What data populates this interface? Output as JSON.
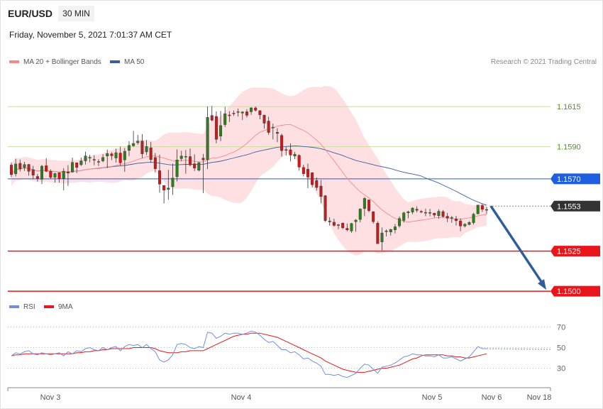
{
  "header": {
    "symbol": "EUR/USD",
    "interval": "30 MIN",
    "datetime": "Friday, November 5, 2021 7:01:37 AM CET",
    "credit": "Research © 2021 Trading Central"
  },
  "colors": {
    "support_red": "#e8161b",
    "resistance_blue": "#1f5ede",
    "resistance_green": "#4a9a00",
    "last_price_tag": "#333333",
    "bollinger_fill": "#ffe0e2",
    "ma20": "#f38a8a",
    "ma50": "#3a5fa0",
    "candle_up": "#2e7d1f",
    "candle_down": "#d01818",
    "arrow": "#2f5d9b",
    "rsi": "#6f8fdc",
    "rsi_ma": "#e8161b"
  },
  "chart_data": [
    {
      "type": "candlestick",
      "legend": [
        {
          "name": "MA 20 + Bollinger Bands",
          "color": "#f38a8a"
        },
        {
          "name": "MA 50",
          "color": "#3a5fa0"
        }
      ],
      "x_ticks": [
        "Nov 3",
        "Nov 4",
        "Nov 5",
        "Nov 6",
        "Nov 18"
      ],
      "ylim": [
        1.14965,
        1.16372
      ],
      "levels": [
        {
          "value": 1.1615,
          "label": "1.1615",
          "kind": "resistance-green"
        },
        {
          "value": 1.159,
          "label": "1.1590",
          "kind": "resistance-green"
        },
        {
          "value": 1.157,
          "label": "1.1570",
          "kind": "resistance-blue"
        },
        {
          "value": 1.1553,
          "label": "1.1553",
          "kind": "last-price"
        },
        {
          "value": 1.1525,
          "label": "1.1525",
          "kind": "support-red"
        },
        {
          "value": 1.15,
          "label": "1.1500",
          "kind": "support-red"
        }
      ],
      "forecast_arrow": {
        "from": 1.1553,
        "to": 1.15
      },
      "ohlc": [
        [
          1.15786,
          1.15802,
          1.1571,
          1.15726
        ],
        [
          1.15731,
          1.15825,
          1.15715,
          1.15793
        ],
        [
          1.15797,
          1.1582,
          1.15746,
          1.15763
        ],
        [
          1.1577,
          1.15806,
          1.15749,
          1.15789
        ],
        [
          1.1579,
          1.15793,
          1.1572,
          1.15747
        ],
        [
          1.15757,
          1.15781,
          1.15698,
          1.15723
        ],
        [
          1.15715,
          1.15731,
          1.15683,
          1.15702
        ],
        [
          1.15697,
          1.15787,
          1.15668,
          1.15779
        ],
        [
          1.15782,
          1.15829,
          1.15742,
          1.15747
        ],
        [
          1.15747,
          1.15759,
          1.157,
          1.15709
        ],
        [
          1.1571,
          1.15739,
          1.15676,
          1.15733
        ],
        [
          1.15738,
          1.15741,
          1.15677,
          1.15701
        ],
        [
          1.157,
          1.15767,
          1.15629,
          1.15748
        ],
        [
          1.15744,
          1.15785,
          1.15656,
          1.15736
        ],
        [
          1.15742,
          1.15832,
          1.15739,
          1.15802
        ],
        [
          1.158,
          1.15802,
          1.15736,
          1.15771
        ],
        [
          1.15788,
          1.15833,
          1.1578,
          1.15812
        ],
        [
          1.15812,
          1.1587,
          1.15789,
          1.15843
        ],
        [
          1.15834,
          1.1585,
          1.15803,
          1.15834
        ],
        [
          1.15821,
          1.15847,
          1.15785,
          1.15817
        ],
        [
          1.15808,
          1.15822,
          1.1578,
          1.15806
        ],
        [
          1.15812,
          1.15853,
          1.15803,
          1.15833
        ],
        [
          1.15842,
          1.15883,
          1.15767,
          1.15858
        ],
        [
          1.15856,
          1.15866,
          1.15817,
          1.15844
        ],
        [
          1.1583,
          1.15888,
          1.15801,
          1.15863
        ],
        [
          1.15861,
          1.15901,
          1.15783,
          1.158
        ],
        [
          1.15818,
          1.15892,
          1.15744,
          1.15872
        ],
        [
          1.15877,
          1.15935,
          1.15842,
          1.15908
        ],
        [
          1.15906,
          1.15999,
          1.15899,
          1.1592
        ],
        [
          1.15925,
          1.15974,
          1.15913,
          1.15935
        ],
        [
          1.15936,
          1.15979,
          1.15829,
          1.15856
        ],
        [
          1.15868,
          1.15941,
          1.15849,
          1.15902
        ],
        [
          1.15894,
          1.1593,
          1.15801,
          1.1582
        ],
        [
          1.15833,
          1.15861,
          1.1574,
          1.15763
        ],
        [
          1.15751,
          1.15851,
          1.15614,
          1.15667
        ],
        [
          1.15659,
          1.15659,
          1.15547,
          1.1563
        ],
        [
          1.15634,
          1.15756,
          1.1557,
          1.15643
        ],
        [
          1.15651,
          1.15795,
          1.156,
          1.15705
        ],
        [
          1.15713,
          1.15883,
          1.15684,
          1.15818
        ],
        [
          1.15826,
          1.15875,
          1.15809,
          1.15842
        ],
        [
          1.15837,
          1.1588,
          1.15732,
          1.1584
        ],
        [
          1.15839,
          1.15889,
          1.15777,
          1.15787
        ],
        [
          1.15794,
          1.15853,
          1.15749,
          1.15767
        ],
        [
          1.15754,
          1.15806,
          1.15746,
          1.15801
        ],
        [
          1.15829,
          1.15855,
          1.15611,
          1.15818
        ],
        [
          1.15819,
          1.16151,
          1.15761,
          1.16083
        ],
        [
          1.16095,
          1.16154,
          1.16059,
          1.16065
        ],
        [
          1.16089,
          1.16121,
          1.15921,
          1.15946
        ],
        [
          1.15966,
          1.16123,
          1.15935,
          1.16032
        ],
        [
          1.16038,
          1.16148,
          1.16023,
          1.16106
        ],
        [
          1.16098,
          1.16122,
          1.16054,
          1.16093
        ],
        [
          1.16109,
          1.16126,
          1.16092,
          1.1611
        ],
        [
          1.16117,
          1.16138,
          1.16088,
          1.16119
        ],
        [
          1.1611,
          1.16121,
          1.16067,
          1.16117
        ],
        [
          1.16118,
          1.16134,
          1.16083,
          1.16096
        ],
        [
          1.16118,
          1.16147,
          1.16099,
          1.16142
        ],
        [
          1.16142,
          1.16151,
          1.16119,
          1.16127
        ],
        [
          1.16125,
          1.16127,
          1.16071,
          1.16099
        ],
        [
          1.16097,
          1.161,
          1.16013,
          1.16047
        ],
        [
          1.1606,
          1.16087,
          1.15975,
          1.15989
        ],
        [
          1.16022,
          1.16044,
          1.15946,
          1.16022
        ],
        [
          1.1599,
          1.16016,
          1.15928,
          1.15983
        ],
        [
          1.15971,
          1.15982,
          1.15839,
          1.15876
        ],
        [
          1.15882,
          1.15899,
          1.15845,
          1.15879
        ],
        [
          1.15881,
          1.15921,
          1.15809,
          1.15848
        ],
        [
          1.15842,
          1.15868,
          1.15823,
          1.15853
        ],
        [
          1.15846,
          1.15853,
          1.15751,
          1.15773
        ],
        [
          1.15771,
          1.15788,
          1.15715,
          1.15732
        ],
        [
          1.1576,
          1.15795,
          1.15642,
          1.15711
        ],
        [
          1.15738,
          1.15741,
          1.15646,
          1.15663
        ],
        [
          1.1569,
          1.15709,
          1.15627,
          1.15646
        ],
        [
          1.15655,
          1.15693,
          1.15548,
          1.1559
        ],
        [
          1.15595,
          1.15599,
          1.15432,
          1.1544
        ],
        [
          1.15437,
          1.1546,
          1.15408,
          1.15432
        ],
        [
          1.1543,
          1.15452,
          1.15403,
          1.1541
        ],
        [
          1.15414,
          1.15419,
          1.15386,
          1.15412
        ],
        [
          1.15424,
          1.15428,
          1.15386,
          1.15395
        ],
        [
          1.15392,
          1.15422,
          1.15373,
          1.15382
        ],
        [
          1.15375,
          1.15425,
          1.15364,
          1.15422
        ],
        [
          1.15433,
          1.15449,
          1.15371,
          1.15443
        ],
        [
          1.15447,
          1.15517,
          1.15429,
          1.15512
        ],
        [
          1.15515,
          1.15587,
          1.15467,
          1.15578
        ],
        [
          1.15569,
          1.1557,
          1.15491,
          1.15502
        ],
        [
          1.15495,
          1.15499,
          1.15421,
          1.15433
        ],
        [
          1.15424,
          1.15436,
          1.15298,
          1.15296
        ],
        [
          1.15307,
          1.15397,
          1.15255,
          1.15363
        ],
        [
          1.15371,
          1.15385,
          1.15341,
          1.15376
        ],
        [
          1.15369,
          1.15388,
          1.15347,
          1.15385
        ],
        [
          1.15382,
          1.15419,
          1.1536,
          1.15401
        ],
        [
          1.15407,
          1.15466,
          1.15396,
          1.15453
        ],
        [
          1.15441,
          1.15495,
          1.15428,
          1.15488
        ],
        [
          1.15488,
          1.15502,
          1.15454,
          1.15495
        ],
        [
          1.15493,
          1.15523,
          1.1548,
          1.15518
        ],
        [
          1.15511,
          1.15529,
          1.15491,
          1.15504
        ],
        [
          1.15497,
          1.15506,
          1.15486,
          1.15495
        ],
        [
          1.15491,
          1.15514,
          1.15467,
          1.15489
        ],
        [
          1.1549,
          1.15513,
          1.15466,
          1.15487
        ],
        [
          1.15486,
          1.15489,
          1.15459,
          1.15474
        ],
        [
          1.1547,
          1.1551,
          1.15451,
          1.15498
        ],
        [
          1.15496,
          1.15506,
          1.15457,
          1.15466
        ],
        [
          1.15467,
          1.15488,
          1.1543,
          1.15455
        ],
        [
          1.15457,
          1.15469,
          1.15426,
          1.15459
        ],
        [
          1.15451,
          1.15469,
          1.15409,
          1.15439
        ],
        [
          1.15438,
          1.15454,
          1.15374,
          1.15406
        ],
        [
          1.15406,
          1.15424,
          1.15397,
          1.15417
        ],
        [
          1.15415,
          1.15436,
          1.15411,
          1.15429
        ],
        [
          1.15427,
          1.15489,
          1.15415,
          1.1548
        ],
        [
          1.15482,
          1.15539,
          1.15479,
          1.15536
        ],
        [
          1.15534,
          1.15542,
          1.15494,
          1.1551
        ],
        [
          1.15509,
          1.15526,
          1.15481,
          1.15506
        ]
      ]
    },
    {
      "type": "line",
      "legend": [
        {
          "name": "RSI",
          "color": "#6f8fdc"
        },
        {
          "name": "9MA",
          "color": "#e8161b"
        }
      ],
      "levels": [
        70,
        50,
        30
      ],
      "ylim": [
        18,
        80
      ],
      "rsi": [
        42,
        45,
        44,
        46,
        47,
        44,
        43,
        45,
        44,
        43,
        44,
        45,
        42,
        46,
        44,
        47,
        46,
        49,
        50,
        48,
        47,
        50,
        48,
        50,
        51,
        47,
        51,
        53,
        52,
        53,
        50,
        53,
        49,
        46,
        38,
        36,
        38,
        43,
        53,
        54,
        53,
        50,
        49,
        51,
        50,
        65,
        64,
        59,
        61,
        64,
        63,
        64,
        64,
        63,
        64,
        66,
        65,
        62,
        58,
        55,
        56,
        52,
        48,
        48,
        45,
        46,
        43,
        39,
        40,
        37,
        35,
        32,
        24,
        24,
        23,
        24,
        22,
        21,
        23,
        25,
        30,
        34,
        33,
        29,
        25,
        31,
        32,
        33,
        35,
        38,
        41,
        42,
        44,
        43,
        43,
        42,
        42,
        41,
        43,
        40,
        40,
        41,
        39,
        37,
        39,
        41,
        46,
        51,
        49,
        49
      ],
      "ma": [
        42,
        43,
        43,
        44,
        44,
        44,
        44,
        44,
        44,
        44,
        44,
        44,
        44,
        44,
        44,
        45,
        45,
        46,
        46,
        47,
        47,
        48,
        48,
        49,
        49,
        49,
        49,
        49,
        50,
        50,
        50,
        50,
        50,
        49,
        47,
        46,
        45,
        45,
        45,
        46,
        46,
        47,
        47,
        47,
        47,
        49,
        51,
        53,
        55,
        57,
        59,
        61,
        62,
        63,
        63,
        64,
        64,
        64,
        63,
        62,
        61,
        60,
        58,
        56,
        54,
        52,
        50,
        48,
        46,
        44,
        42,
        40,
        37,
        35,
        33,
        31,
        29,
        28,
        27,
        26,
        26,
        26,
        27,
        28,
        29,
        30,
        30,
        31,
        32,
        33,
        35,
        37,
        39,
        40,
        42,
        43,
        43,
        43,
        43,
        43,
        42,
        42,
        41,
        41,
        40,
        40,
        41,
        42,
        43,
        44
      ]
    }
  ]
}
